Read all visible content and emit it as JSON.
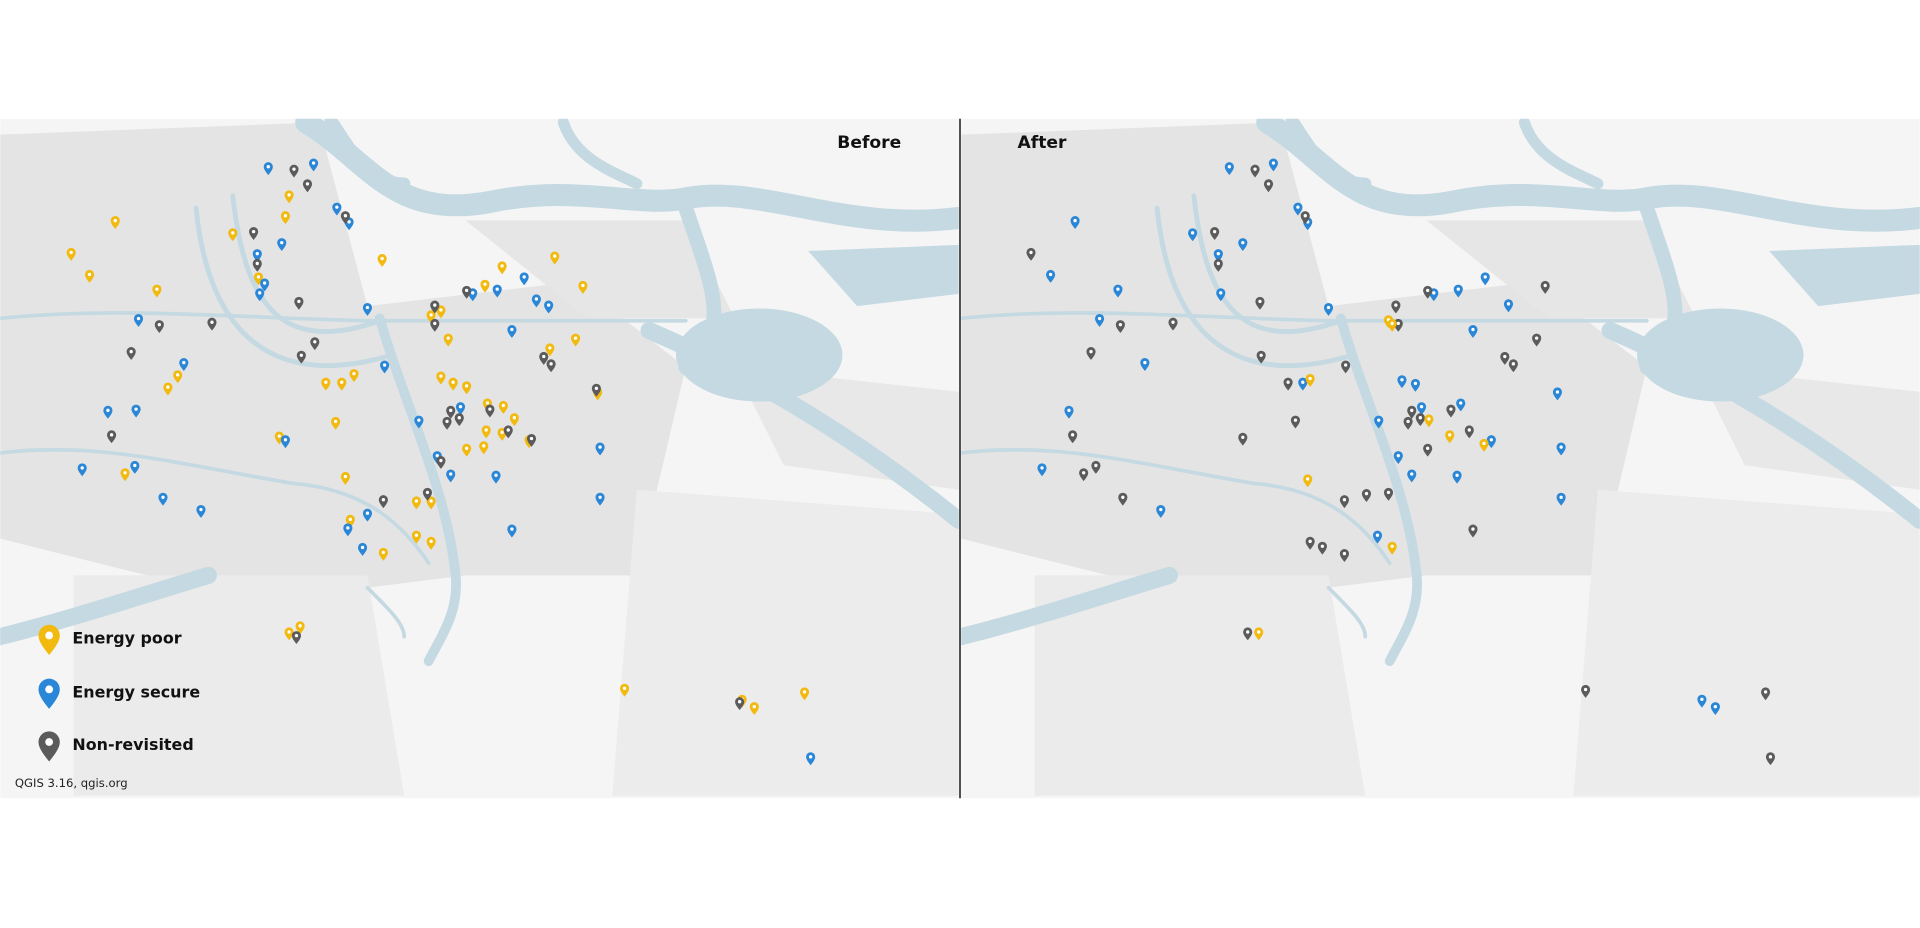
{
  "panels": [
    {
      "label": "Before"
    },
    {
      "label": "After"
    }
  ],
  "legend": [
    {
      "label": "Energy poor",
      "color": "#f2b90f"
    },
    {
      "label": "Energy secure",
      "color": "#2a86d6"
    },
    {
      "label": "Non-revisited",
      "color": "#5b5b5b"
    }
  ],
  "attribution": "QGIS 3.16, qgis.org"
}
